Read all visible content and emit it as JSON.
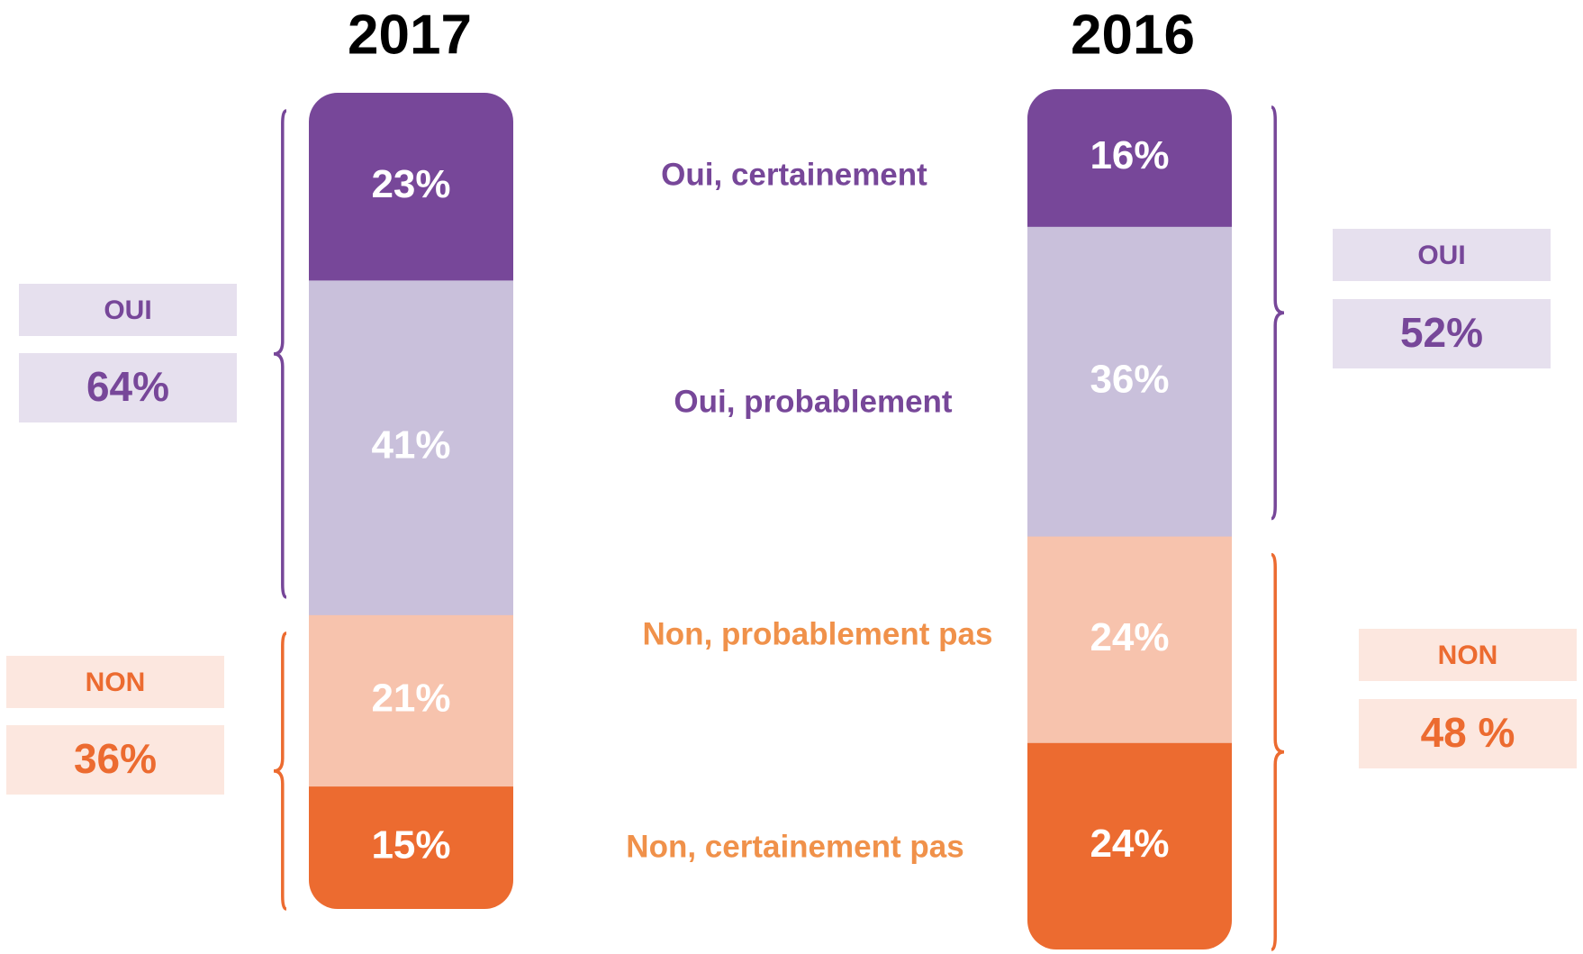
{
  "chart_data": {
    "type": "stacked-bar",
    "categories": [
      "2017",
      "2016"
    ],
    "ylim": [
      0,
      100
    ],
    "series": [
      {
        "name": "Oui, certainement",
        "color": "#774799",
        "label_color": "#774799",
        "values": [
          23,
          16
        ],
        "value_labels": [
          "23%",
          "16%"
        ]
      },
      {
        "name": "Oui, probablement",
        "color": "#c9c0db",
        "label_color": "#774799",
        "values": [
          41,
          36
        ],
        "value_labels": [
          "41%",
          "36%"
        ]
      },
      {
        "name": "Non, probablement pas",
        "color": "#f7c3ad",
        "label_color": "#f0914a",
        "values": [
          21,
          24
        ],
        "value_labels": [
          "21%",
          "24%"
        ]
      },
      {
        "name": "Non, certainement pas",
        "color": "#ec6b30",
        "label_color": "#f0914a",
        "values": [
          15,
          24
        ],
        "value_labels": [
          "15%",
          "24%"
        ]
      }
    ],
    "groups": [
      {
        "name": "OUI",
        "color": "#774799",
        "box_color": "#e6e0ee",
        "series_count": 2,
        "values": [
          64,
          52
        ],
        "value_labels": [
          "64%",
          "52%"
        ]
      },
      {
        "name": "NON",
        "color": "#ec6b30",
        "box_color": "#fce7df",
        "series_count": 2,
        "values": [
          36,
          48
        ],
        "value_labels": [
          "36%",
          "48 %"
        ]
      }
    ]
  }
}
